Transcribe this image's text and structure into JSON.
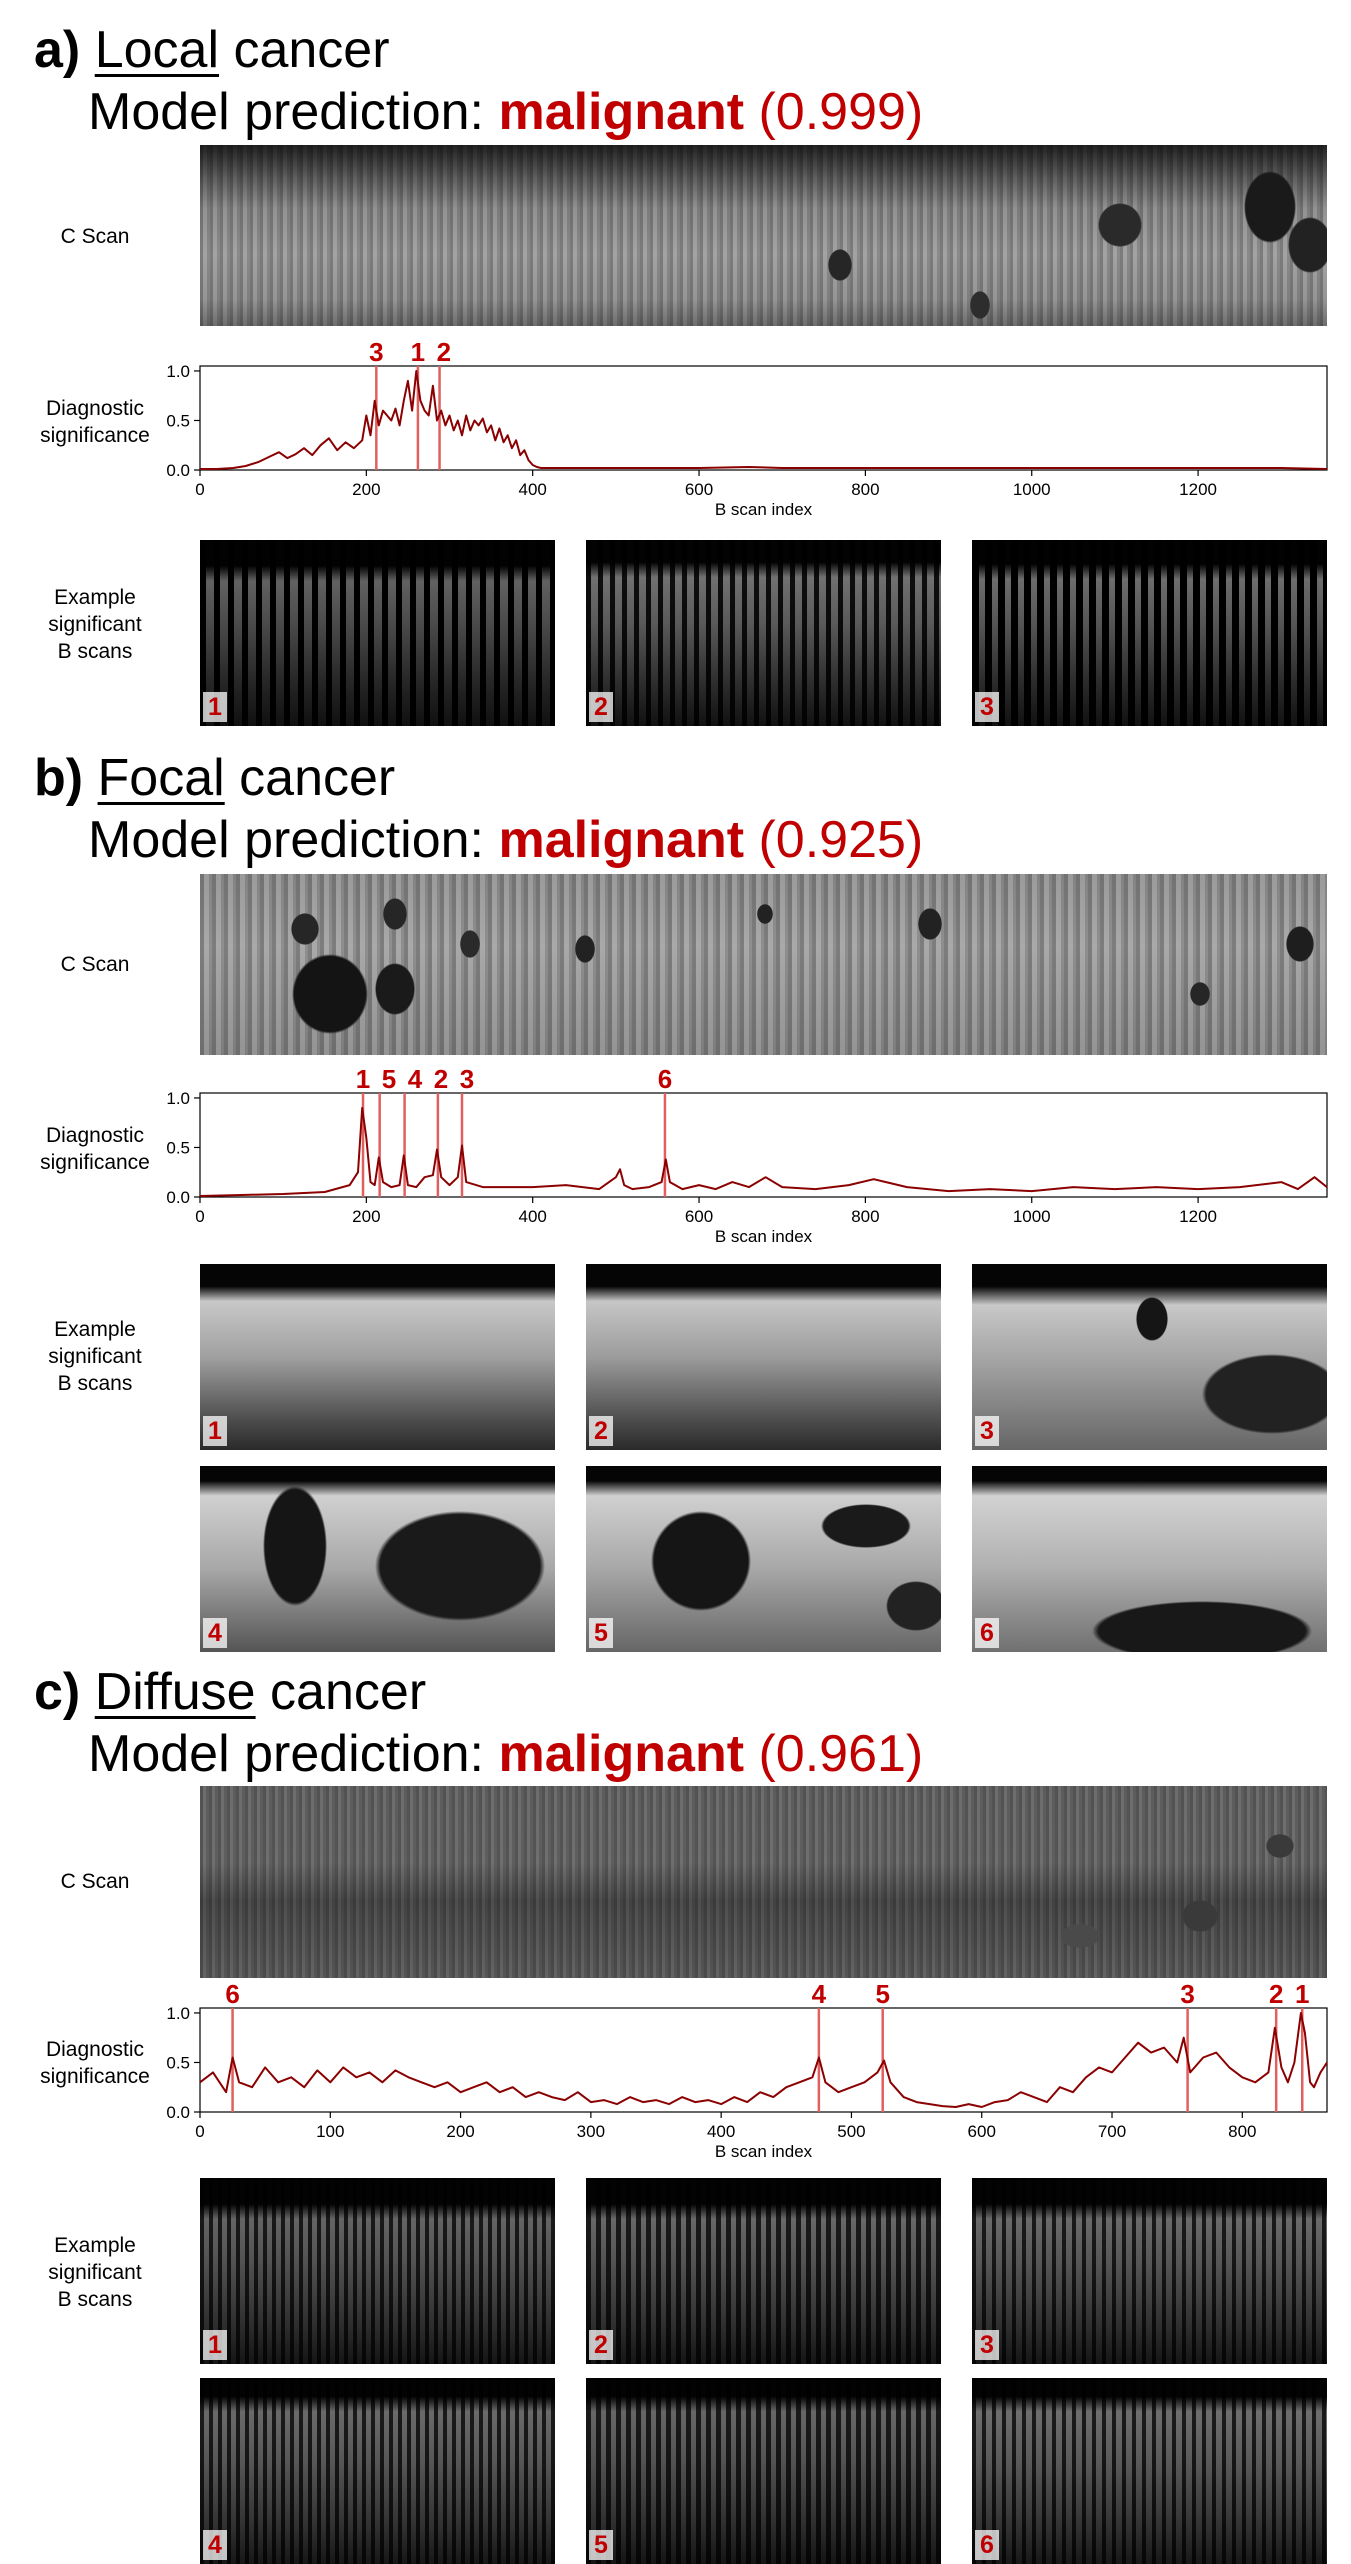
{
  "colors": {
    "highlight": "#c00000",
    "trace": "#8b0000",
    "marker_line": "#e06060"
  },
  "labels": {
    "model_prediction": "Model prediction:",
    "c_scan": "C Scan",
    "diag_line1": "Diagnostic",
    "diag_line2": "significance",
    "ex_line1": "Example",
    "ex_line2": "significant",
    "ex_line3": "B scans"
  },
  "panels": [
    {
      "letter": "a)",
      "word": "Local",
      "rest": " cancer",
      "prediction": "malignant",
      "probability": "(0.999)",
      "bscan_numbers": [
        "1",
        "2",
        "3"
      ]
    },
    {
      "letter": "b)",
      "word": "Focal",
      "rest": " cancer",
      "prediction": "malignant",
      "probability": "(0.925)",
      "bscan_numbers": [
        "1",
        "2",
        "3",
        "4",
        "5",
        "6"
      ]
    },
    {
      "letter": "c)",
      "word": "Diffuse",
      "rest": " cancer",
      "prediction": "malignant",
      "probability": "(0.961)",
      "bscan_numbers": [
        "1",
        "2",
        "3",
        "4",
        "5",
        "6"
      ]
    }
  ],
  "chart_data": [
    {
      "type": "line",
      "xlabel": "B scan index",
      "ylabel": "Diagnostic significance",
      "xlim": [
        0,
        1355
      ],
      "ylim": [
        0,
        1.05
      ],
      "xticks": [
        0,
        200,
        400,
        600,
        800,
        1000,
        1200
      ],
      "yticks": [
        "0.0",
        "0.5",
        "1.0"
      ],
      "x": [
        0,
        20,
        40,
        55,
        70,
        85,
        95,
        105,
        115,
        125,
        135,
        145,
        155,
        165,
        175,
        185,
        195,
        200,
        205,
        210,
        215,
        220,
        225,
        230,
        235,
        240,
        245,
        250,
        255,
        260,
        265,
        270,
        275,
        280,
        285,
        290,
        295,
        300,
        305,
        310,
        315,
        320,
        325,
        330,
        335,
        340,
        345,
        350,
        355,
        360,
        365,
        370,
        375,
        380,
        385,
        390,
        395,
        400,
        405,
        410,
        420,
        440,
        500,
        600,
        660,
        700,
        800,
        900,
        1000,
        1100,
        1200,
        1300,
        1355
      ],
      "y": [
        0.01,
        0.01,
        0.02,
        0.04,
        0.08,
        0.14,
        0.18,
        0.12,
        0.16,
        0.22,
        0.15,
        0.25,
        0.32,
        0.2,
        0.28,
        0.22,
        0.3,
        0.55,
        0.35,
        0.7,
        0.45,
        0.6,
        0.55,
        0.5,
        0.62,
        0.45,
        0.7,
        0.9,
        0.6,
        1.0,
        0.7,
        0.6,
        0.55,
        0.85,
        0.5,
        0.6,
        0.45,
        0.55,
        0.4,
        0.5,
        0.35,
        0.55,
        0.4,
        0.5,
        0.45,
        0.52,
        0.38,
        0.45,
        0.3,
        0.42,
        0.28,
        0.35,
        0.22,
        0.3,
        0.15,
        0.2,
        0.1,
        0.05,
        0.03,
        0.02,
        0.02,
        0.02,
        0.02,
        0.02,
        0.03,
        0.02,
        0.02,
        0.02,
        0.02,
        0.02,
        0.02,
        0.02,
        0.01
      ],
      "markers": [
        {
          "label": "3",
          "x": 212
        },
        {
          "label": "1",
          "x": 262
        },
        {
          "label": "2",
          "x": 288
        }
      ]
    },
    {
      "type": "line",
      "xlabel": "B scan index",
      "ylabel": "Diagnostic significance",
      "xlim": [
        0,
        1355
      ],
      "ylim": [
        0,
        1.05
      ],
      "xticks": [
        0,
        200,
        400,
        600,
        800,
        1000,
        1200
      ],
      "yticks": [
        "0.0",
        "0.5",
        "1.0"
      ],
      "x": [
        0,
        50,
        100,
        150,
        180,
        190,
        195,
        200,
        205,
        210,
        215,
        220,
        230,
        240,
        245,
        250,
        260,
        270,
        280,
        285,
        290,
        300,
        310,
        315,
        320,
        340,
        360,
        400,
        440,
        480,
        500,
        505,
        510,
        520,
        540,
        555,
        560,
        565,
        580,
        600,
        620,
        640,
        660,
        680,
        700,
        740,
        780,
        810,
        850,
        900,
        950,
        1000,
        1050,
        1100,
        1150,
        1200,
        1250,
        1300,
        1320,
        1340,
        1355
      ],
      "y": [
        0.01,
        0.02,
        0.03,
        0.05,
        0.12,
        0.25,
        0.9,
        0.6,
        0.15,
        0.12,
        0.4,
        0.15,
        0.1,
        0.12,
        0.42,
        0.12,
        0.1,
        0.2,
        0.22,
        0.48,
        0.2,
        0.12,
        0.2,
        0.52,
        0.15,
        0.1,
        0.1,
        0.1,
        0.12,
        0.08,
        0.2,
        0.28,
        0.12,
        0.08,
        0.1,
        0.15,
        0.38,
        0.15,
        0.08,
        0.12,
        0.08,
        0.15,
        0.1,
        0.2,
        0.1,
        0.08,
        0.12,
        0.18,
        0.1,
        0.06,
        0.08,
        0.06,
        0.1,
        0.08,
        0.1,
        0.08,
        0.1,
        0.15,
        0.08,
        0.2,
        0.1
      ],
      "markers": [
        {
          "label": "1",
          "x": 196
        },
        {
          "label": "5",
          "x": 216
        },
        {
          "label": "4",
          "x": 246
        },
        {
          "label": "2",
          "x": 286
        },
        {
          "label": "3",
          "x": 315
        },
        {
          "label": "6",
          "x": 559
        }
      ]
    },
    {
      "type": "line",
      "xlabel": "B scan index",
      "ylabel": "Diagnostic significance",
      "xlim": [
        0,
        865
      ],
      "ylim": [
        0,
        1.05
      ],
      "xticks": [
        0,
        100,
        200,
        300,
        400,
        500,
        600,
        700,
        800
      ],
      "yticks": [
        "0.0",
        "0.5",
        "1.0"
      ],
      "x": [
        0,
        10,
        20,
        25,
        30,
        40,
        50,
        60,
        70,
        80,
        90,
        100,
        110,
        120,
        130,
        140,
        150,
        160,
        170,
        180,
        190,
        200,
        210,
        220,
        230,
        240,
        250,
        260,
        270,
        280,
        290,
        300,
        310,
        320,
        330,
        340,
        350,
        360,
        370,
        380,
        390,
        400,
        410,
        420,
        430,
        440,
        450,
        460,
        470,
        475,
        480,
        490,
        500,
        510,
        520,
        525,
        530,
        540,
        550,
        560,
        570,
        580,
        590,
        600,
        610,
        620,
        630,
        640,
        650,
        660,
        670,
        680,
        690,
        700,
        710,
        720,
        730,
        740,
        750,
        755,
        760,
        770,
        780,
        790,
        800,
        810,
        820,
        825,
        830,
        835,
        840,
        845,
        848,
        852,
        855,
        860,
        865
      ],
      "y": [
        0.3,
        0.4,
        0.2,
        0.55,
        0.3,
        0.25,
        0.45,
        0.3,
        0.35,
        0.25,
        0.42,
        0.3,
        0.45,
        0.35,
        0.4,
        0.3,
        0.42,
        0.35,
        0.3,
        0.25,
        0.3,
        0.2,
        0.25,
        0.3,
        0.2,
        0.25,
        0.15,
        0.2,
        0.15,
        0.12,
        0.2,
        0.1,
        0.12,
        0.08,
        0.15,
        0.1,
        0.12,
        0.08,
        0.15,
        0.1,
        0.12,
        0.08,
        0.15,
        0.1,
        0.2,
        0.15,
        0.25,
        0.3,
        0.35,
        0.55,
        0.3,
        0.2,
        0.25,
        0.3,
        0.4,
        0.52,
        0.3,
        0.15,
        0.1,
        0.08,
        0.06,
        0.05,
        0.08,
        0.05,
        0.1,
        0.12,
        0.2,
        0.15,
        0.1,
        0.25,
        0.2,
        0.35,
        0.45,
        0.4,
        0.55,
        0.7,
        0.6,
        0.65,
        0.5,
        0.75,
        0.4,
        0.55,
        0.6,
        0.45,
        0.35,
        0.3,
        0.4,
        0.85,
        0.45,
        0.3,
        0.5,
        1.0,
        0.8,
        0.3,
        0.25,
        0.4,
        0.5
      ],
      "markers": [
        {
          "label": "6",
          "x": 25
        },
        {
          "label": "4",
          "x": 475
        },
        {
          "label": "5",
          "x": 524
        },
        {
          "label": "3",
          "x": 758
        },
        {
          "label": "2",
          "x": 826
        },
        {
          "label": "1",
          "x": 846
        }
      ]
    }
  ]
}
